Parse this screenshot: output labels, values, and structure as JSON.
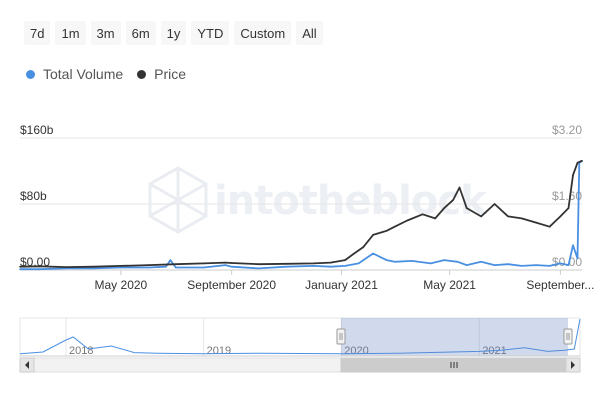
{
  "range_selector": {
    "buttons": [
      "7d",
      "1m",
      "3m",
      "6m",
      "1y",
      "YTD",
      "Custom",
      "All"
    ]
  },
  "legend": {
    "items": [
      {
        "label": "Total Volume",
        "color": "#4a90e2"
      },
      {
        "label": "Price",
        "color": "#333333"
      }
    ]
  },
  "watermark": "intotheblock",
  "chart_data": {
    "type": "line",
    "left_axis": {
      "ticks": [
        "$0.00",
        "$80b",
        "$160b"
      ],
      "values": [
        0,
        80,
        160
      ],
      "unit": "billion USD"
    },
    "right_axis": {
      "ticks": [
        "$0.00",
        "$1.60",
        "$3.20"
      ],
      "values": [
        0,
        1.6,
        3.2
      ]
    },
    "x_axis": {
      "ticks": [
        "May 2020",
        "September 2020",
        "January 2021",
        "May 2021",
        "September..."
      ]
    },
    "series": [
      {
        "name": "Total Volume",
        "color": "#4a90e2",
        "axis": "left",
        "x": [
          "2020-01-10",
          "2020-02-01",
          "2020-03-01",
          "2020-04-01",
          "2020-05-01",
          "2020-06-01",
          "2020-06-20",
          "2020-06-25",
          "2020-07-01",
          "2020-08-01",
          "2020-08-25",
          "2020-09-01",
          "2020-10-01",
          "2020-11-01",
          "2020-12-01",
          "2020-12-20",
          "2021-01-05",
          "2021-01-20",
          "2021-02-05",
          "2021-02-20",
          "2021-03-01",
          "2021-03-20",
          "2021-04-10",
          "2021-04-25",
          "2021-05-10",
          "2021-05-20",
          "2021-06-05",
          "2021-06-20",
          "2021-07-05",
          "2021-07-20",
          "2021-08-05",
          "2021-08-20",
          "2021-09-01",
          "2021-09-10",
          "2021-09-15",
          "2021-09-20",
          "2021-09-22",
          "2021-09-25"
        ],
        "values": [
          1,
          1,
          2,
          2,
          3,
          3,
          4,
          12,
          3,
          3,
          6,
          4,
          2,
          4,
          5,
          4,
          5,
          8,
          20,
          12,
          10,
          11,
          8,
          12,
          10,
          6,
          10,
          6,
          7,
          5,
          6,
          5,
          8,
          6,
          30,
          14,
          130,
          132
        ]
      },
      {
        "name": "Price",
        "color": "#333333",
        "axis": "right",
        "x": [
          "2020-01-10",
          "2020-02-01",
          "2020-03-01",
          "2020-04-01",
          "2020-05-01",
          "2020-06-01",
          "2020-07-01",
          "2020-08-01",
          "2020-08-25",
          "2020-09-01",
          "2020-10-01",
          "2020-11-01",
          "2020-12-01",
          "2020-12-20",
          "2021-01-05",
          "2021-01-15",
          "2021-01-25",
          "2021-02-05",
          "2021-02-20",
          "2021-03-01",
          "2021-03-15",
          "2021-04-01",
          "2021-04-15",
          "2021-04-25",
          "2021-05-05",
          "2021-05-12",
          "2021-05-20",
          "2021-06-05",
          "2021-06-20",
          "2021-07-05",
          "2021-07-20",
          "2021-08-05",
          "2021-08-20",
          "2021-09-01",
          "2021-09-10",
          "2021-09-15",
          "2021-09-20",
          "2021-09-25"
        ],
        "values": [
          0.08,
          0.09,
          0.07,
          0.08,
          0.1,
          0.12,
          0.14,
          0.16,
          0.18,
          0.17,
          0.14,
          0.15,
          0.16,
          0.18,
          0.24,
          0.4,
          0.55,
          0.85,
          0.95,
          1.05,
          1.2,
          1.35,
          1.25,
          1.5,
          1.7,
          2.0,
          1.5,
          1.3,
          1.6,
          1.3,
          1.25,
          1.15,
          1.05,
          1.3,
          1.5,
          2.3,
          2.6,
          2.65
        ]
      }
    ],
    "navigator": {
      "year_labels": [
        "2018",
        "2019",
        "2020",
        "2021"
      ],
      "x": [
        "2017-09-01",
        "2017-11-01",
        "2018-01-01",
        "2018-01-20",
        "2018-03-01",
        "2018-05-01",
        "2018-07-01",
        "2018-09-01",
        "2019-01-01",
        "2019-06-01",
        "2020-01-01",
        "2020-06-01",
        "2021-01-01",
        "2021-03-01",
        "2021-05-01",
        "2021-07-01",
        "2021-08-15",
        "2021-09-10",
        "2021-09-25"
      ],
      "values": [
        2,
        5,
        25,
        30,
        10,
        15,
        4,
        3,
        2,
        3,
        2,
        3,
        6,
        8,
        12,
        6,
        8,
        10,
        60
      ]
    }
  }
}
